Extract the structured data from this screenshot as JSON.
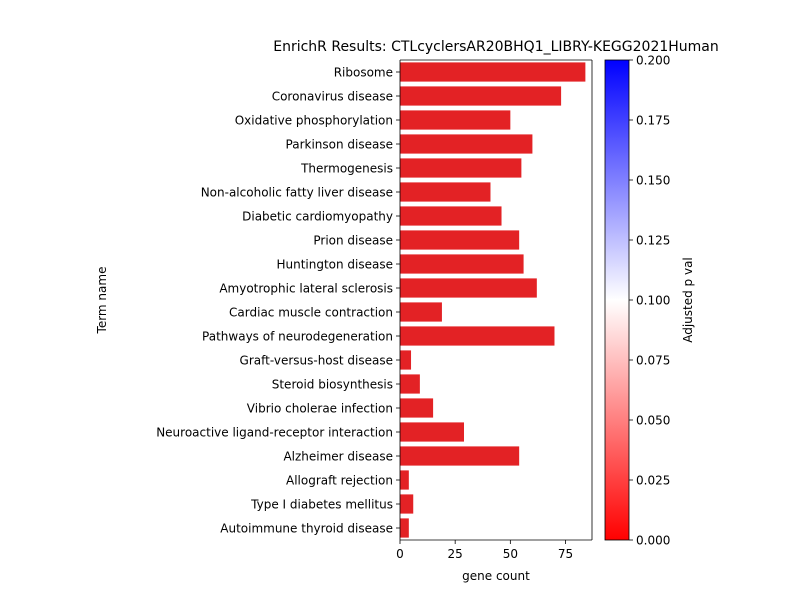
{
  "chart_data": {
    "type": "bar",
    "orientation": "horizontal",
    "title": "EnrichR Results: CTLcyclersAR20BHQ1_LIBRY-KEGG2021Human",
    "xlabel": "gene count",
    "ylabel": "Term name",
    "xlim": [
      0,
      87
    ],
    "xticks": [
      "0",
      "25",
      "50",
      "75"
    ],
    "categories": [
      "Ribosome",
      "Coronavirus disease",
      "Oxidative phosphorylation",
      "Parkinson disease",
      "Thermogenesis",
      "Non-alcoholic fatty liver disease",
      "Diabetic cardiomyopathy",
      "Prion disease",
      "Huntington disease",
      "Amyotrophic lateral sclerosis",
      "Cardiac muscle contraction",
      "Pathways of neurodegeneration",
      "Graft-versus-host disease",
      "Steroid biosynthesis",
      "Vibrio cholerae infection",
      "Neuroactive ligand-receptor interaction",
      "Alzheimer disease",
      "Allograft rejection",
      "Type I diabetes mellitus",
      "Autoimmune thyroid disease"
    ],
    "values": [
      84,
      73,
      50,
      60,
      55,
      41,
      46,
      54,
      56,
      62,
      19,
      70,
      5,
      9,
      15,
      29,
      54,
      4,
      6,
      4
    ],
    "colorbar": {
      "label": "Adjusted p val",
      "range": [
        0,
        0.2
      ],
      "ticks": [
        "0.000",
        "0.025",
        "0.050",
        "0.075",
        "0.100",
        "0.125",
        "0.150",
        "0.175",
        "0.200"
      ],
      "colors": {
        "low": "#ff0000",
        "mid": "#ffffff",
        "high": "#0000ff"
      }
    },
    "bar_color": "#e32225",
    "grid": false,
    "legend": "none"
  }
}
